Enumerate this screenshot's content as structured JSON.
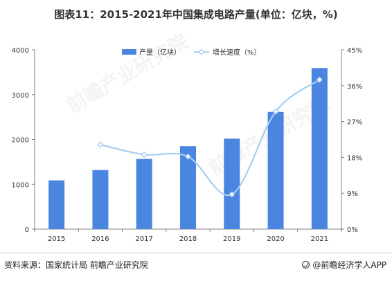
{
  "title": "图表11：2015-2021年中国集成电路产量(单位：亿块，%)",
  "source": "资料来源：国家统计局 前瞻产业研究院",
  "brand": "@前瞻经济学人APP",
  "watermark": "前瞻产业研究院",
  "colors": {
    "bar": "#4a86e0",
    "line": "#a9cdf0",
    "axis": "#7f7f7f",
    "grid": "#e0e0e0"
  },
  "chart_data": {
    "type": "bar",
    "categories": [
      "2015",
      "2016",
      "2017",
      "2018",
      "2019",
      "2020",
      "2021"
    ],
    "series": [
      {
        "name": "产量（亿块）",
        "type": "bar",
        "axis": "left",
        "values": [
          1087,
          1318,
          1565,
          1850,
          2018,
          2614,
          3594
        ]
      },
      {
        "name": "增长速度（%）",
        "type": "line",
        "axis": "right",
        "smooth": true,
        "values": [
          null,
          21.2,
          18.7,
          18.2,
          8.7,
          29.5,
          37.5
        ]
      }
    ],
    "y_left": {
      "min": 0,
      "max": 4000,
      "ticks": [
        "0",
        "1000",
        "2000",
        "3000",
        "4000"
      ]
    },
    "y_right": {
      "min": 0,
      "max": 45,
      "ticks": [
        "0%",
        "9%",
        "18%",
        "27%",
        "36%",
        "45%"
      ]
    },
    "legend_position": "top-center",
    "grid": false
  }
}
